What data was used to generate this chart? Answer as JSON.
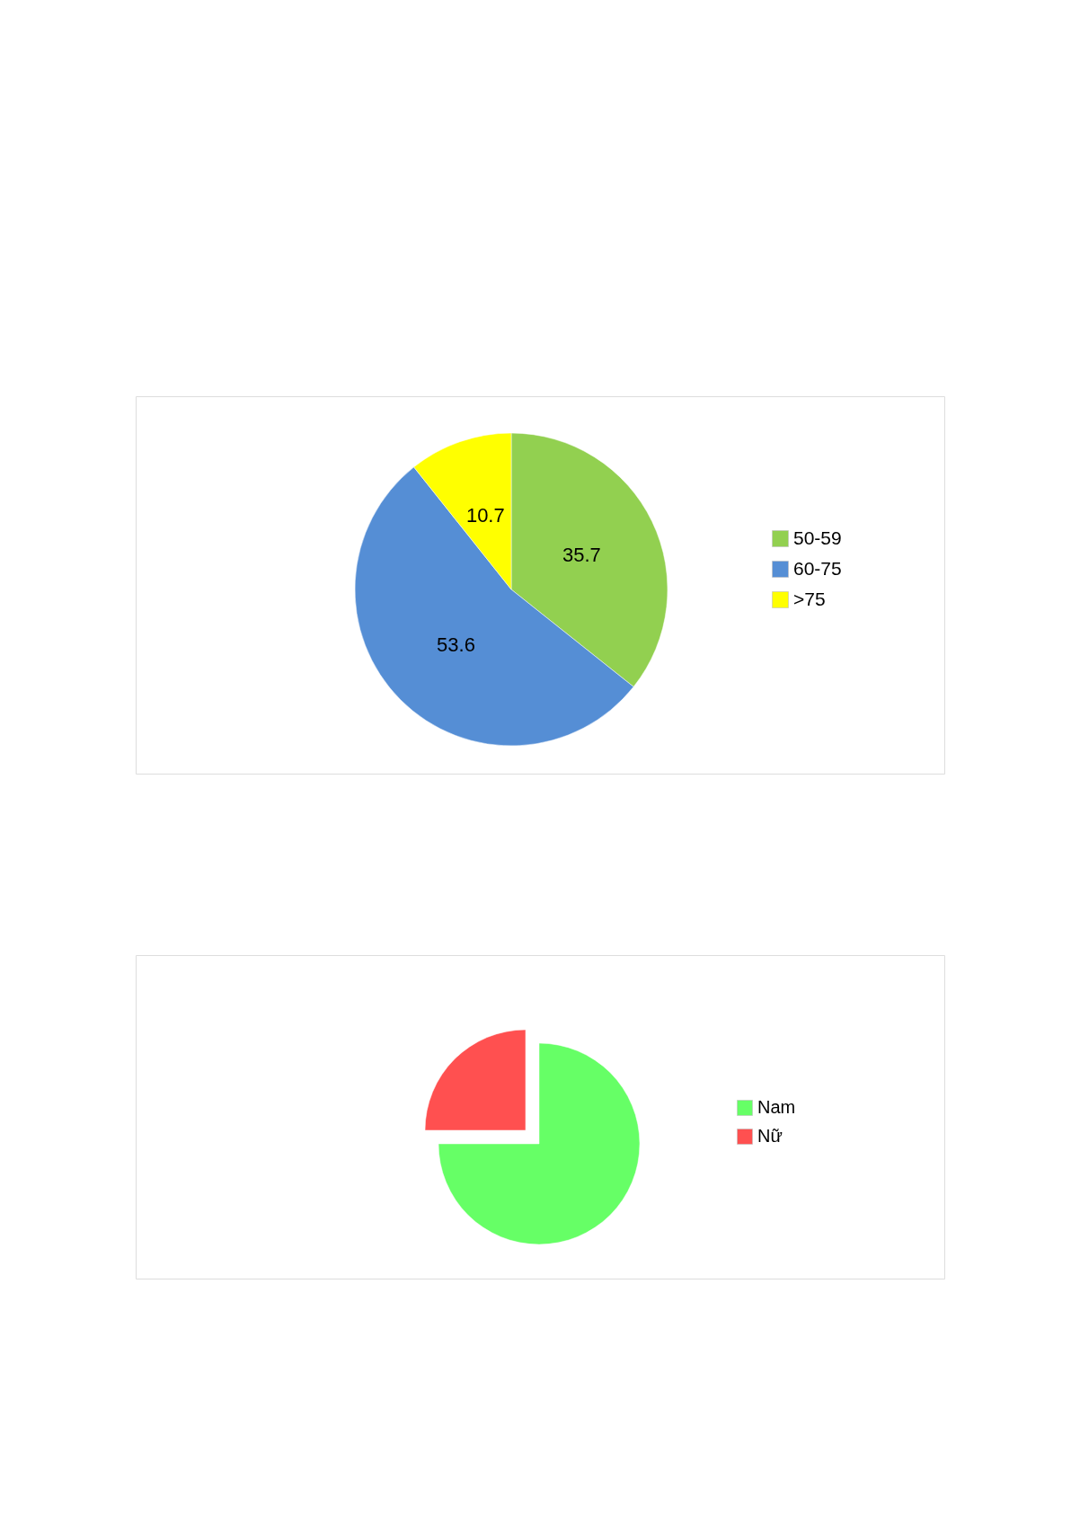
{
  "chart_data": [
    {
      "type": "pie",
      "categories": [
        "50-59",
        "60-75",
        ">75"
      ],
      "values": [
        35.7,
        53.6,
        10.7
      ],
      "colors": [
        "#92d050",
        "#558ed5",
        "#ffff00"
      ],
      "data_labels": true,
      "legend": "right"
    },
    {
      "type": "pie",
      "categories": [
        "Nam",
        "Nữ"
      ],
      "values": [
        75,
        25
      ],
      "colors": [
        "#66ff66",
        "#ff5050"
      ],
      "legend": "right"
    }
  ]
}
